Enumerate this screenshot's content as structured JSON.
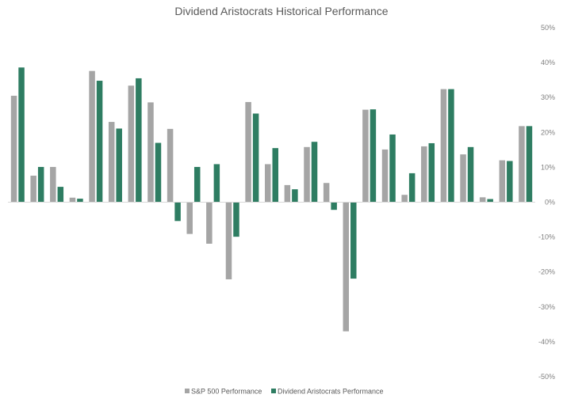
{
  "chart_data": {
    "type": "bar",
    "title": "Dividend Aristocrats Historical Performance",
    "xlabel": "",
    "ylabel": "",
    "ylim": [
      -50,
      50
    ],
    "y_ticks": [
      "50%",
      "40%",
      "30%",
      "20%",
      "10%",
      "0%",
      "-10%",
      "-20%",
      "-30%",
      "-40%",
      "-50%"
    ],
    "y_tick_values": [
      50,
      40,
      30,
      20,
      10,
      0,
      -10,
      -20,
      -30,
      -40,
      -50
    ],
    "grid": false,
    "legend_position": "bottom",
    "series": [
      {
        "name": "S&P 500 Performance",
        "color": "#a5a5a5",
        "values": [
          30.5,
          7.6,
          10.1,
          1.3,
          37.6,
          23.0,
          33.4,
          28.6,
          21.0,
          -9.1,
          -11.9,
          -22.1,
          28.7,
          10.9,
          4.9,
          15.8,
          5.5,
          -37.0,
          26.5,
          15.1,
          2.1,
          16.0,
          32.4,
          13.7,
          1.4,
          12.0,
          21.8
        ]
      },
      {
        "name": "Dividend Aristocrats Performance",
        "color": "#2e7d62",
        "values": [
          38.6,
          10.1,
          4.4,
          1.0,
          34.8,
          21.1,
          35.5,
          17.0,
          -5.4,
          10.1,
          10.9,
          -9.9,
          25.4,
          15.5,
          3.7,
          17.3,
          -2.2,
          -21.9,
          26.6,
          19.4,
          8.3,
          16.9,
          32.4,
          15.8,
          0.9,
          11.8,
          21.8
        ]
      }
    ]
  }
}
